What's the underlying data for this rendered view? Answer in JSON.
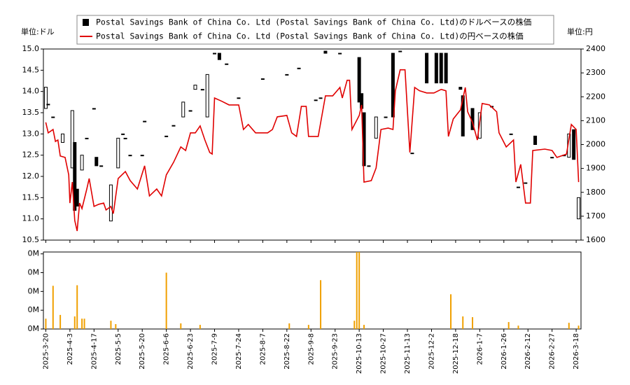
{
  "chart_data": [
    {
      "type": "candlestick",
      "ylabel": "単位:ドル",
      "y2label": "単位:円",
      "xlim": [
        -1,
        222
      ],
      "ylim": [
        10.5,
        15
      ],
      "yticks": [
        10.5,
        {
          "value": 11,
          "label": "11.0"
        },
        11.5,
        {
          "value": 12,
          "label": "12.0"
        },
        12.5,
        {
          "value": 13,
          "label": "13.0"
        },
        13.5,
        {
          "value": 14,
          "label": "14.0"
        },
        14.5,
        {
          "value": 15,
          "label": "15.0"
        }
      ],
      "y2lim": [
        1600,
        2400
      ],
      "y2ticks": [
        1600,
        1700,
        1800,
        1900,
        2000,
        2100,
        2200,
        2300,
        2400
      ],
      "grid": false,
      "series": [
        {
          "name": "Postal Savings Bank of China Co. Ltd (Postal Savings Bank of China Co. Ltd)のドルベースの株価",
          "color": "#000000",
          "x": [
            0,
            1,
            3,
            7,
            11,
            12,
            13,
            15,
            17,
            20,
            21,
            23,
            27,
            30,
            32,
            33,
            35,
            40,
            41,
            50,
            53,
            57,
            60,
            62,
            65,
            67,
            70,
            72,
            75,
            80,
            90,
            100,
            105,
            112,
            114,
            116,
            122,
            130,
            131,
            132,
            134,
            137,
            141,
            144,
            147,
            152,
            158,
            162,
            164,
            166,
            172,
            173,
            177,
            180,
            185,
            193,
            196,
            199,
            203,
            210,
            215,
            217,
            219,
            221
          ],
          "open": [
            13.6,
            13.7,
            13.4,
            12.8,
            12.2,
            12.8,
            11.7,
            12.15,
            12.9,
            13.6,
            12.45,
            12.25,
            10.95,
            12.2,
            13.0,
            12.9,
            12.5,
            12.5,
            13.3,
            12.95,
            13.2,
            13.4,
            13.55,
            14.05,
            14.05,
            13.4,
            14.9,
            14.9,
            14.65,
            13.85,
            14.3,
            14.4,
            14.55,
            13.8,
            13.85,
            14.95,
            14.9,
            14.8,
            13.95,
            13.5,
            12.25,
            12.9,
            13.4,
            14.9,
            14.95,
            12.55,
            14.9,
            14.9,
            14.9,
            14.9,
            14.1,
            13.9,
            13.6,
            12.9,
            13.65,
            13.0,
            11.75,
            11.85,
            12.95,
            12.45,
            12.5,
            12.45,
            13.1,
            11.0
          ],
          "close": [
            14.1,
            13.7,
            13.4,
            13.0,
            13.55,
            11.2,
            11.3,
            12.5,
            12.9,
            13.6,
            12.25,
            12.25,
            11.8,
            12.9,
            13.0,
            12.9,
            12.5,
            12.5,
            13.3,
            12.95,
            13.2,
            13.75,
            13.55,
            14.15,
            14.05,
            14.4,
            14.9,
            14.75,
            14.65,
            13.85,
            14.3,
            14.4,
            14.55,
            13.8,
            13.85,
            14.9,
            14.9,
            13.75,
            13.6,
            12.25,
            12.25,
            13.4,
            13.4,
            13.4,
            14.95,
            12.55,
            14.2,
            14.2,
            14.2,
            14.2,
            14.05,
            12.95,
            13.1,
            13.5,
            13.65,
            13.0,
            11.75,
            11.85,
            12.75,
            12.45,
            12.5,
            13.0,
            12.4,
            11.5
          ]
        },
        {
          "name": "Postal Savings Bank of China Co. Ltd (Postal Savings Bank of China Co. Ltd)の円ベースの株価",
          "color": "#e00000",
          "axis": "y2",
          "x": [
            0,
            1,
            3,
            4,
            5,
            6,
            8,
            9.5,
            10,
            11,
            12,
            13,
            14,
            15,
            17,
            18,
            20,
            22,
            24,
            25,
            27,
            28,
            30,
            33,
            35,
            38,
            41,
            43,
            46,
            48,
            50,
            53,
            56,
            58,
            60,
            62,
            64,
            66,
            68,
            69,
            70,
            73,
            76,
            80,
            82,
            84,
            87,
            92,
            94,
            96,
            100,
            102,
            104,
            106,
            108,
            109,
            113,
            116,
            119,
            122,
            123,
            125,
            126,
            127,
            130,
            131,
            132,
            135,
            137,
            139,
            142,
            144,
            145,
            147,
            149,
            151,
            153,
            155,
            158,
            161,
            164,
            166,
            167,
            169,
            172,
            174,
            175,
            177,
            179,
            181,
            184,
            187,
            188,
            191,
            194,
            195,
            197,
            199,
            201,
            202,
            207,
            210,
            212,
            216,
            218,
            220,
            221
          ],
          "values": [
            2093,
            2049,
            2063,
            2013,
            2019,
            1952,
            1946,
            1873,
            1755,
            1843,
            1682,
            1638,
            1755,
            1732,
            1814,
            1858,
            1741,
            1750,
            1755,
            1726,
            1741,
            1711,
            1858,
            1887,
            1849,
            1814,
            1911,
            1785,
            1814,
            1785,
            1873,
            1926,
            1990,
            1975,
            2049,
            2049,
            2078,
            2019,
            1967,
            1960,
            2195,
            2181,
            2166,
            2166,
            2063,
            2084,
            2049,
            2049,
            2063,
            2116,
            2122,
            2049,
            2034,
            2160,
            2160,
            2034,
            2034,
            2204,
            2204,
            2239,
            2195,
            2269,
            2269,
            2063,
            2122,
            2166,
            1843,
            1849,
            1902,
            2063,
            2069,
            2063,
            2225,
            2313,
            2313,
            1967,
            2239,
            2225,
            2216,
            2216,
            2231,
            2225,
            2034,
            2107,
            2145,
            2239,
            2137,
            2093,
            2019,
            2172,
            2166,
            2137,
            2049,
            1990,
            2019,
            1843,
            1917,
            1755,
            1755,
            1975,
            1981,
            1975,
            1946,
            1960,
            2084,
            2063,
            1843
          ]
        }
      ]
    },
    {
      "type": "bar",
      "color": "#f0a000",
      "xlim": [
        -1,
        222
      ],
      "ylim": [
        0,
        0.41
      ],
      "yticks": [
        {
          "value": 0,
          "label": "0M"
        },
        {
          "value": 0.1,
          "label": "0M"
        },
        {
          "value": 0.2,
          "label": "0M"
        },
        {
          "value": 0.3,
          "label": "0M"
        },
        {
          "value": 0.4,
          "label": "0M"
        }
      ],
      "xticks": [
        {
          "value": 0,
          "label": "2025-3-20"
        },
        {
          "value": 10,
          "label": "2025-4-3"
        },
        {
          "value": 20,
          "label": "2025-4-17"
        },
        {
          "value": 30,
          "label": "2025-5-5"
        },
        {
          "value": 40,
          "label": "2025-5-20"
        },
        {
          "value": 50,
          "label": "2025-6-6"
        },
        {
          "value": 60,
          "label": "2025-6-23"
        },
        {
          "value": 70,
          "label": "2025-7-9"
        },
        {
          "value": 80,
          "label": "2025-7-24"
        },
        {
          "value": 90,
          "label": "2025-8-7"
        },
        {
          "value": 100,
          "label": "2025-8-22"
        },
        {
          "value": 110,
          "label": "2025-9-8"
        },
        {
          "value": 120,
          "label": "2025-9-23"
        },
        {
          "value": 130,
          "label": "2025-10-13"
        },
        {
          "value": 140,
          "label": "2025-10-27"
        },
        {
          "value": 150,
          "label": "2025-11-13"
        },
        {
          "value": 160,
          "label": "2025-12-2"
        },
        {
          "value": 170,
          "label": "2025-12-18"
        },
        {
          "value": 180,
          "label": "2026-1-7"
        },
        {
          "value": 190,
          "label": "2026-1-26"
        },
        {
          "value": 200,
          "label": "2026-2-12"
        },
        {
          "value": 210,
          "label": "2026-2-27"
        },
        {
          "value": 220,
          "label": "2026-3-18"
        }
      ],
      "x": [
        0,
        3,
        6,
        12,
        13,
        15,
        16,
        27,
        29,
        50,
        56,
        64,
        101,
        109,
        114,
        128,
        129,
        130,
        132,
        168,
        173,
        177,
        192,
        196,
        217,
        221
      ],
      "values": [
        0.055,
        0.23,
        0.075,
        0.067,
        0.233,
        0.055,
        0.055,
        0.044,
        0.026,
        0.3,
        0.03,
        0.022,
        0.03,
        0.022,
        0.26,
        0.044,
        0.41,
        0.41,
        0.022,
        0.185,
        0.067,
        0.063,
        0.037,
        0.018,
        0.033,
        0.018
      ]
    }
  ]
}
